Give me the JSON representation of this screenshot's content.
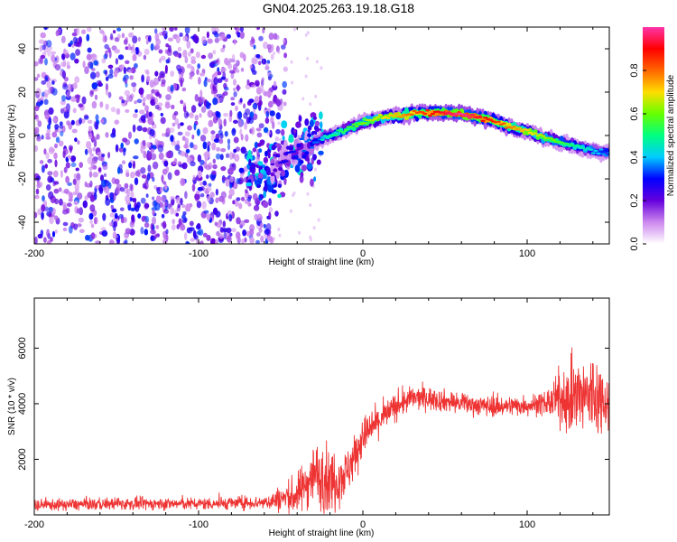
{
  "title": "GN04.2025.263.19.18.G18",
  "chart_data": [
    {
      "type": "heatmap",
      "xlabel": "Height of straight line (km)",
      "ylabel": "Frequency (Hz)",
      "xlim": [
        -200,
        150
      ],
      "ylim": [
        -50,
        50
      ],
      "xticks": [
        -200,
        -100,
        0,
        100
      ],
      "yticks": [
        -40,
        -20,
        0,
        20,
        40
      ],
      "colorbar": {
        "label": "Normalized spectral amplitude",
        "range": [
          0,
          1
        ],
        "ticks": [
          "0.0",
          "0.2",
          "0.4",
          "0.6",
          "0.8"
        ],
        "tick_values": [
          0,
          0.2,
          0.4,
          0.6,
          0.8
        ],
        "colors": [
          "#ffffff",
          "#cc88ee",
          "#6600dd",
          "#0000ff",
          "#00ccff",
          "#00ff80",
          "#66ff00",
          "#ffdd00",
          "#ff6600",
          "#ff0000",
          "#ff33aa"
        ]
      },
      "noise_region_x": [
        -200,
        -55
      ],
      "ridge": {
        "x": [
          -60,
          -50,
          -40,
          -30,
          -20,
          -10,
          0,
          10,
          20,
          30,
          40,
          50,
          60,
          70,
          80,
          90,
          100,
          110,
          120,
          130,
          140,
          150
        ],
        "freq": [
          -18,
          -12,
          -7,
          -3,
          0,
          3,
          6,
          8,
          9,
          10,
          10.5,
          10.5,
          10,
          8.5,
          6.5,
          4,
          2,
          -1,
          -3,
          -5,
          -7,
          -8
        ]
      }
    },
    {
      "type": "line",
      "xlabel": "Height of straight line (km)",
      "ylabel": "SNR (10 * v/v)",
      "xlim": [
        -200,
        150
      ],
      "ylim": [
        0,
        7800
      ],
      "xticks": [
        -200,
        -100,
        0,
        100
      ],
      "yticks": [
        2000,
        4000,
        6000
      ],
      "color": "#ee3333",
      "trend": {
        "x": [
          -200,
          -150,
          -100,
          -60,
          -40,
          -30,
          -20,
          -10,
          0,
          10,
          20,
          30,
          40,
          60,
          80,
          100,
          110,
          120,
          130,
          140,
          150
        ],
        "mean": [
          350,
          400,
          400,
          450,
          700,
          1500,
          1200,
          1500,
          2800,
          3400,
          3900,
          4200,
          4200,
          4000,
          3900,
          3950,
          4000,
          4150,
          4200,
          4300,
          4100
        ],
        "spread": [
          170,
          180,
          180,
          200,
          600,
          900,
          1000,
          700,
          600,
          450,
          400,
          350,
          350,
          300,
          300,
          300,
          350,
          700,
          1200,
          1400,
          700
        ]
      }
    }
  ]
}
